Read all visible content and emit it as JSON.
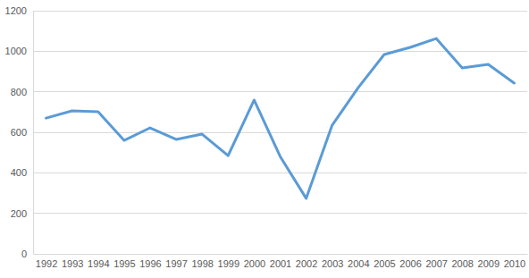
{
  "chart_data": {
    "type": "line",
    "categories": [
      "1992",
      "1993",
      "1994",
      "1995",
      "1996",
      "1997",
      "1998",
      "1999",
      "2000",
      "2001",
      "2002",
      "2003",
      "2004",
      "2005",
      "2006",
      "2007",
      "2008",
      "2009",
      "2010"
    ],
    "values": [
      670,
      706,
      701,
      560,
      622,
      565,
      591,
      485,
      759,
      481,
      274,
      635,
      820,
      984,
      1019,
      1063,
      918,
      935,
      843
    ],
    "color": "#5b9bd5",
    "ylim": [
      0,
      1200
    ],
    "yticks": [
      0,
      200,
      400,
      600,
      800,
      1000,
      1200
    ],
    "grid": true
  }
}
